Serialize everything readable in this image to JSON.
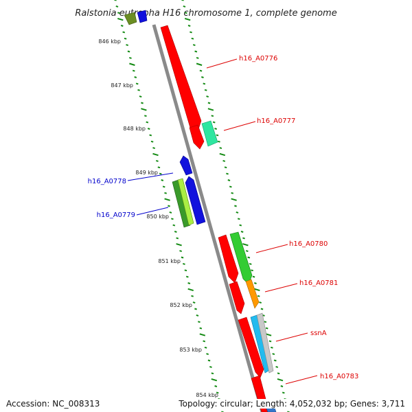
{
  "title": "Ralstonia eutropha H16 chromosome 1, complete genome",
  "footer": {
    "accession": "Accession: NC_008313",
    "topology": "Topology: circular; Length: 4,052,032 bp; Genes: 3,711"
  },
  "colors": {
    "backbone": "#8a8a8a",
    "tick": "#138a13",
    "forward_label": "#dd0000",
    "reverse_label": "#0000cc"
  },
  "position_ticks": [
    {
      "kb": 846,
      "label": "846 kbp"
    },
    {
      "kb": 847,
      "label": "847 kbp"
    },
    {
      "kb": 848,
      "label": "848 kbp"
    },
    {
      "kb": 849,
      "label": "849 kbp"
    },
    {
      "kb": 850,
      "label": "850 kbp"
    },
    {
      "kb": 851,
      "label": "851 kbp"
    },
    {
      "kb": 852,
      "label": "852 kbp"
    },
    {
      "kb": 853,
      "label": "853 kbp"
    },
    {
      "kb": 854,
      "label": "854 kbp"
    }
  ],
  "gene_labels": [
    {
      "name": "h16_A0776",
      "strand": "forward"
    },
    {
      "name": "h16_A0777",
      "strand": "forward"
    },
    {
      "name": "h16_A0778",
      "strand": "reverse"
    },
    {
      "name": "h16_A0779",
      "strand": "reverse"
    },
    {
      "name": "h16_A0780",
      "strand": "forward"
    },
    {
      "name": "h16_A0781",
      "strand": "forward"
    },
    {
      "name": "ssnA",
      "strand": "forward"
    },
    {
      "name": "h16_A0783",
      "strand": "forward"
    }
  ]
}
